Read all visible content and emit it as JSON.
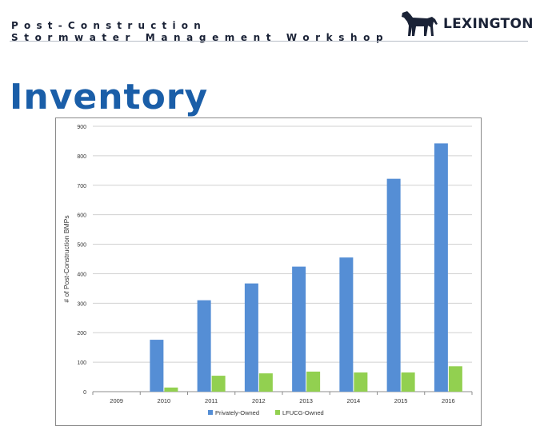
{
  "header": {
    "line1": "Post-Construction",
    "line2": "Stormwater Management Workshop",
    "logo_text": "LEXINGTON",
    "logo_icon": "horse-icon"
  },
  "slide_title": "Inventory",
  "chart_data": {
    "type": "bar",
    "title": "",
    "xlabel": "",
    "ylabel": "# of Post-Construction BMPs",
    "categories": [
      "2009",
      "2010",
      "2011",
      "2012",
      "2013",
      "2014",
      "2015",
      "2016"
    ],
    "series": [
      {
        "name": "Privately-Owned",
        "color": "#558ed5",
        "values": [
          0,
          176,
          310,
          367,
          424,
          455,
          722,
          842
        ]
      },
      {
        "name": "LFUCG-Owned",
        "color": "#92d050",
        "values": [
          0,
          14,
          54,
          62,
          68,
          65,
          65,
          86
        ]
      }
    ],
    "yticks": [
      0,
      100,
      200,
      300,
      400,
      500,
      600,
      700,
      800,
      900
    ],
    "ylim": [
      0,
      900
    ],
    "grid": true,
    "legend": "bottom"
  },
  "colors": {
    "title": "#1a5ea8",
    "header_text": "#1a2236",
    "gridline": "#d0d0d0"
  }
}
